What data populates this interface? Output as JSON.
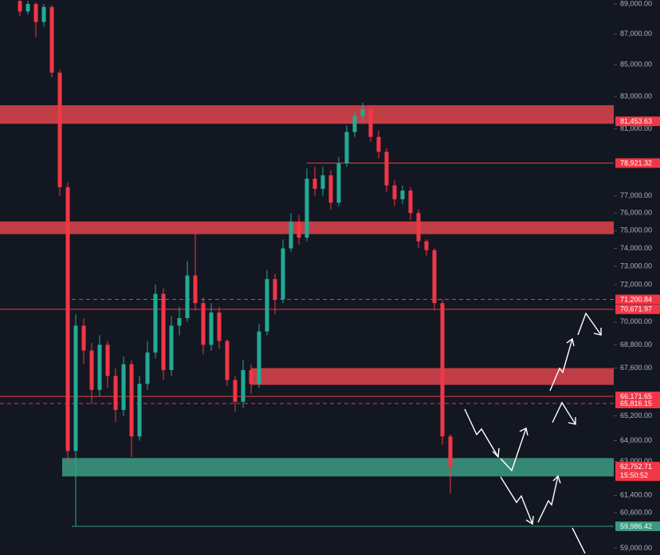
{
  "chart_data": {
    "type": "candlestick",
    "log_scale": true,
    "ylim": [
      58700,
      89270
    ],
    "yticks": [
      {
        "value": 89000,
        "label": "89,000.00"
      },
      {
        "value": 87000,
        "label": "87,000.00"
      },
      {
        "value": 85000,
        "label": "85,000.00"
      },
      {
        "value": 83000,
        "label": "83,000.00"
      },
      {
        "value": 81000,
        "label": "81,000.00"
      },
      {
        "value": 77000,
        "label": "77,000.00"
      },
      {
        "value": 76000,
        "label": "76,000.00"
      },
      {
        "value": 75000,
        "label": "75,000.00"
      },
      {
        "value": 74000,
        "label": "74,000.00"
      },
      {
        "value": 73000,
        "label": "73,000.00"
      },
      {
        "value": 72000,
        "label": "72,000.00"
      },
      {
        "value": 70000,
        "label": "70,000.00"
      },
      {
        "value": 68800,
        "label": "68,800.00"
      },
      {
        "value": 67600,
        "label": "67,600.00"
      },
      {
        "value": 65200,
        "label": "65,200.00"
      },
      {
        "value": 64000,
        "label": "64,000.00"
      },
      {
        "value": 63000,
        "label": "63,000.00"
      },
      {
        "value": 61400,
        "label": "61,400.00"
      },
      {
        "value": 60600,
        "label": "60,600.00"
      },
      {
        "value": 59000,
        "label": "59,000.00"
      }
    ],
    "up_color": "#22ab94",
    "down_color": "#f23645",
    "open": [
      89200,
      88500,
      89000,
      87800,
      88800,
      84500,
      77500,
      63500,
      69800,
      68500,
      66500,
      68800,
      67200,
      65500,
      67800,
      64200,
      66800,
      68400,
      71500,
      67500,
      69800,
      70200,
      72500,
      71000,
      68800,
      70500,
      69000,
      67000,
      65900,
      67500,
      66800,
      69500,
      72300,
      71200,
      74000,
      75500,
      74600,
      78000,
      77400,
      78200,
      76600,
      78900,
      80800,
      81800,
      82200,
      80500,
      79600,
      77600,
      76800,
      77300,
      76000,
      74400,
      73900,
      71000,
      64200
    ],
    "high": [
      89300,
      89200,
      89100,
      89000,
      88900,
      84700,
      77800,
      70400,
      70200,
      68900,
      69300,
      69000,
      67600,
      68200,
      68000,
      67200,
      69000,
      72000,
      71800,
      70300,
      70800,
      73300,
      75000,
      71300,
      71000,
      70800,
      69100,
      67200,
      68000,
      67800,
      69900,
      72800,
      72600,
      74500,
      76000,
      75900,
      78600,
      78700,
      78700,
      78500,
      79300,
      81200,
      82000,
      82600,
      82300,
      80900,
      79800,
      77900,
      77600,
      77500,
      76200,
      74500,
      74000,
      71200,
      64300
    ],
    "low": [
      88200,
      88300,
      86800,
      87500,
      84200,
      77000,
      62800,
      60000,
      67800,
      65800,
      66200,
      66600,
      64900,
      65200,
      63200,
      64000,
      66500,
      68100,
      67000,
      67200,
      69300,
      70000,
      70600,
      68300,
      68500,
      68600,
      66700,
      65400,
      65600,
      66300,
      66600,
      69300,
      70400,
      71000,
      73800,
      74200,
      74400,
      77000,
      77000,
      76200,
      76400,
      78700,
      80500,
      81400,
      80200,
      79200,
      77200,
      76400,
      76500,
      75600,
      74000,
      73600,
      70600,
      63800,
      61500
    ],
    "close": [
      88500,
      89000,
      87800,
      88800,
      84500,
      77500,
      63500,
      69800,
      68500,
      66500,
      68800,
      67200,
      65500,
      67800,
      64200,
      66800,
      68400,
      71500,
      67500,
      69800,
      70200,
      72500,
      71000,
      68800,
      70500,
      69000,
      67000,
      65900,
      67500,
      66800,
      69500,
      72300,
      71200,
      74000,
      75500,
      74600,
      78000,
      77400,
      78200,
      76600,
      78900,
      80800,
      81800,
      82200,
      80500,
      79600,
      77600,
      76800,
      77300,
      76000,
      74400,
      73900,
      71000,
      64200,
      62753
    ],
    "zones": [
      {
        "top": 82450,
        "bottom": 81300,
        "color": "#d9434b"
      },
      {
        "top": 75520,
        "bottom": 74800,
        "color": "#d9434b"
      },
      {
        "top": 67600,
        "bottom": 66750,
        "color": "#d9434b"
      },
      {
        "top": 63160,
        "bottom": 62290,
        "color": "#3a9a80"
      }
    ],
    "levels": [
      {
        "value": 81453.63,
        "label": "81,453.63",
        "color": "#f23645",
        "style": "solid"
      },
      {
        "value": 78921.32,
        "label": "78,921.32",
        "color": "#f23645",
        "style": "solid"
      },
      {
        "value": 71200.84,
        "label": "71,200.84",
        "color": "#f23645",
        "style": "dashed"
      },
      {
        "value": 70671.97,
        "label": "70,671.97",
        "color": "#f23645",
        "style": "solid"
      },
      {
        "value": 66171.65,
        "label": "66,171.65",
        "color": "#f23645",
        "style": "solid"
      },
      {
        "value": 65816.15,
        "label": "65,816.15",
        "color": "#f23645",
        "style": "dashed"
      },
      {
        "value": 59986.42,
        "label": "59,986.42",
        "color": "#3a9a80",
        "style": "solid"
      }
    ],
    "last_price": {
      "value": 62752.71,
      "label": "62,752.71",
      "countdown": "15:50:52",
      "color": "#f23645"
    }
  }
}
